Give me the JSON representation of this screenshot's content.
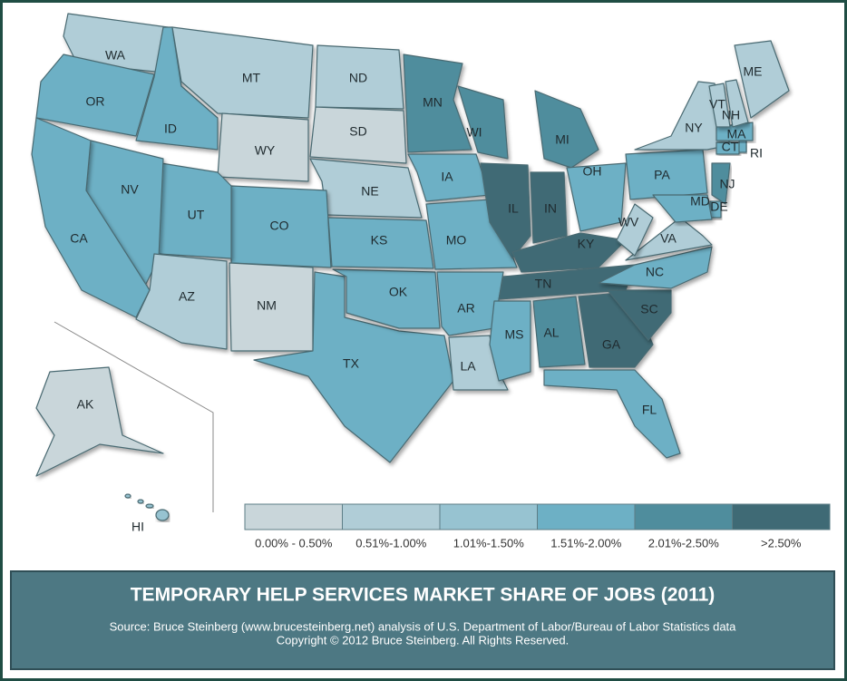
{
  "map": {
    "title": "TEMPORARY HELP SERVICES MARKET SHARE OF JOBS (2011)",
    "source": "Source: Bruce Steinberg (www.brucesteinberg.net) analysis of U.S. Department of Labor/Bureau of Labor Statistics data",
    "copyright": "Copyright © 2012 Bruce Steinberg. All Rights Reserved.",
    "legend": [
      {
        "label": "0.00% - 0.50%",
        "color": "#c9d6da"
      },
      {
        "label": "0.51%-1.00%",
        "color": "#b0cdd7"
      },
      {
        "label": "1.01%-1.50%",
        "color": "#97c3d1"
      },
      {
        "label": "1.51%-2.00%",
        "color": "#6db0c5"
      },
      {
        "label": "2.01%-2.50%",
        "color": "#4f8d9d"
      },
      {
        "label": ">2.50%",
        "color": "#3f6a75"
      }
    ],
    "states": [
      {
        "label": "WA",
        "color": "#b0cdd7"
      },
      {
        "label": "OR",
        "color": "#6db0c5"
      },
      {
        "label": "ID",
        "color": "#6db0c5"
      },
      {
        "label": "MT",
        "color": "#b0cdd7"
      },
      {
        "label": "WY",
        "color": "#c9d6da"
      },
      {
        "label": "ND",
        "color": "#b0cdd7"
      },
      {
        "label": "SD",
        "color": "#c9d6da"
      },
      {
        "label": "NE",
        "color": "#b0cdd7"
      },
      {
        "label": "CO",
        "color": "#6db0c5"
      },
      {
        "label": "UT",
        "color": "#6db0c5"
      },
      {
        "label": "NV",
        "color": "#6db0c5"
      },
      {
        "label": "CA",
        "color": "#6db0c5"
      },
      {
        "label": "AZ",
        "color": "#b0cdd7"
      },
      {
        "label": "NM",
        "color": "#c9d6da"
      },
      {
        "label": "TX",
        "color": "#6db0c5"
      },
      {
        "label": "OK",
        "color": "#6db0c5"
      },
      {
        "label": "KS",
        "color": "#6db0c5"
      },
      {
        "label": "MN",
        "color": "#4f8d9d"
      },
      {
        "label": "IA",
        "color": "#6db0c5"
      },
      {
        "label": "MO",
        "color": "#6db0c5"
      },
      {
        "label": "AR",
        "color": "#6db0c5"
      },
      {
        "label": "LA",
        "color": "#b0cdd7"
      },
      {
        "label": "WI",
        "color": "#4f8d9d"
      },
      {
        "label": "IL",
        "color": "#3f6a75"
      },
      {
        "label": "IN",
        "color": "#3f6a75"
      },
      {
        "label": "MI",
        "color": "#4f8d9d"
      },
      {
        "label": "OH",
        "color": "#6db0c5"
      },
      {
        "label": "KY",
        "color": "#3f6a75"
      },
      {
        "label": "TN",
        "color": "#3f6a75"
      },
      {
        "label": "MS",
        "color": "#6db0c5"
      },
      {
        "label": "AL",
        "color": "#4f8d9d"
      },
      {
        "label": "GA",
        "color": "#3f6a75"
      },
      {
        "label": "FL",
        "color": "#6db0c5"
      },
      {
        "label": "SC",
        "color": "#3f6a75"
      },
      {
        "label": "NC",
        "color": "#6db0c5"
      },
      {
        "label": "VA",
        "color": "#b0cdd7"
      },
      {
        "label": "WV",
        "color": "#b0cdd7"
      },
      {
        "label": "PA",
        "color": "#6db0c5"
      },
      {
        "label": "NY",
        "color": "#b0cdd7"
      },
      {
        "label": "NJ",
        "color": "#4f8d9d"
      },
      {
        "label": "DE",
        "color": "#6db0c5"
      },
      {
        "label": "MD",
        "color": "#6db0c5"
      },
      {
        "label": "CT",
        "color": "#6db0c5"
      },
      {
        "label": "RI",
        "color": "#6db0c5"
      },
      {
        "label": "MA",
        "color": "#6db0c5"
      },
      {
        "label": "VT",
        "color": "#b0cdd7"
      },
      {
        "label": "NH",
        "color": "#b0cdd7"
      },
      {
        "label": "ME",
        "color": "#b0cdd7"
      },
      {
        "label": "AK",
        "color": "#c9d6da"
      },
      {
        "label": "HI",
        "color": "#97c3d1"
      }
    ]
  }
}
